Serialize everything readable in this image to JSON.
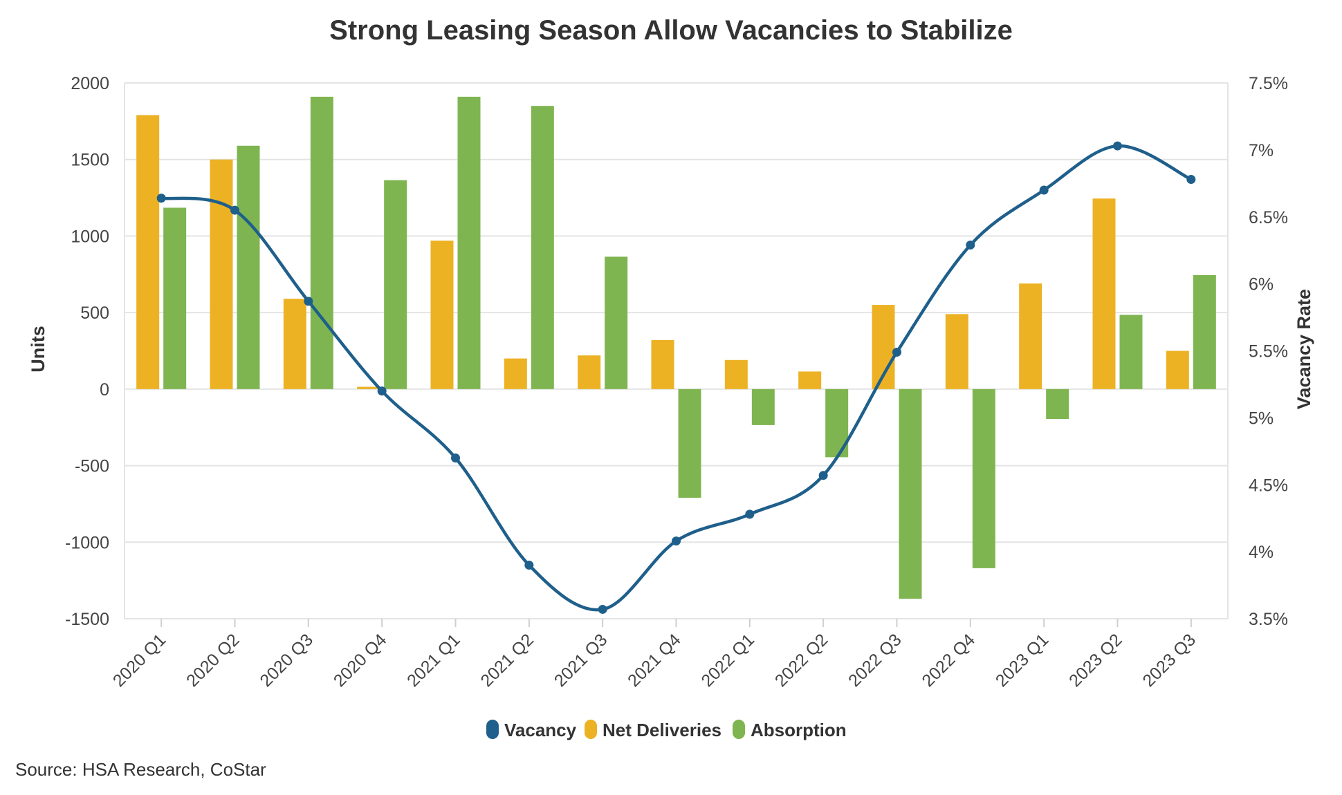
{
  "chart_data": {
    "type": "bar",
    "title": "Strong Leasing Season Allow Vacancies to Stabilize",
    "categories": [
      "2020 Q1",
      "2020 Q2",
      "2020 Q3",
      "2020 Q4",
      "2021 Q1",
      "2021 Q2",
      "2021 Q3",
      "2021 Q4",
      "2022 Q1",
      "2022 Q2",
      "2022 Q3",
      "2022 Q4",
      "2023 Q1",
      "2023 Q2",
      "2023 Q3"
    ],
    "ylabel": "Units",
    "y2label": "Vacancy Rate",
    "ylim": [
      -1500,
      2000
    ],
    "yticks": [
      2000,
      1500,
      1000,
      500,
      0,
      -500,
      -1000,
      -1500
    ],
    "y2lim": [
      3.5,
      7.5
    ],
    "y2ticks": [
      "7.5%",
      "7%",
      "6.5%",
      "6%",
      "5.5%",
      "5%",
      "4.5%",
      "4%",
      "3.5%"
    ],
    "grid": true,
    "legend_position": "bottom-center",
    "series": [
      {
        "name": "Vacancy",
        "type": "line",
        "axis": "right",
        "color": "#1f5f8b",
        "values": [
          6.64,
          6.55,
          5.87,
          5.2,
          4.7,
          3.9,
          3.57,
          4.08,
          4.28,
          4.57,
          5.49,
          6.29,
          6.7,
          7.03,
          6.78
        ]
      },
      {
        "name": "Net Deliveries",
        "type": "bar",
        "axis": "left",
        "color": "#ecb224",
        "values": [
          1790,
          1500,
          590,
          15,
          970,
          200,
          220,
          320,
          190,
          115,
          550,
          490,
          690,
          1245,
          250
        ]
      },
      {
        "name": "Absorption",
        "type": "bar",
        "axis": "left",
        "color": "#7fb551",
        "values": [
          1185,
          1590,
          1910,
          1365,
          1910,
          1850,
          865,
          -710,
          -235,
          -445,
          -1370,
          -1170,
          -195,
          485,
          745
        ]
      }
    ]
  },
  "source": "Source: HSA Research, CoStar"
}
